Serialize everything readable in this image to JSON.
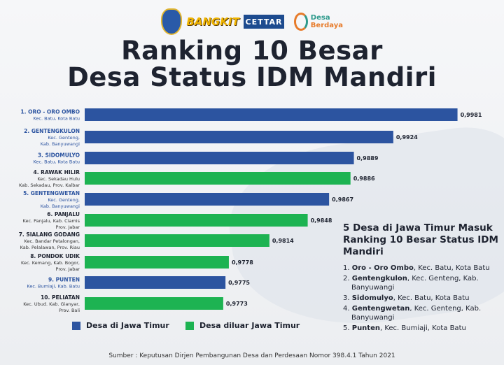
{
  "logos": [
    "Jawa Timur",
    "Jatim Bangkit",
    "CETTAR",
    "Desa Berdaya"
  ],
  "title_line1": "Ranking 10 Besar",
  "title_line2": "Desa Status IDM Mandiri",
  "chart_data": {
    "type": "bar",
    "orientation": "horizontal",
    "categories": [
      {
        "name": "1. ORO - ORO OMBO",
        "sub": [
          "Kec. Batu, Kota Batu"
        ],
        "group": "jatim"
      },
      {
        "name": "2. GENTENGKULON",
        "sub": [
          "Kec. Genteng,",
          "Kab. Banyuwangi"
        ],
        "group": "jatim"
      },
      {
        "name": "3. SIDOMULYO",
        "sub": [
          "Kec. Batu, Kota Batu"
        ],
        "group": "jatim"
      },
      {
        "name": "4. RAWAK HILIR",
        "sub": [
          "Kec. Sekadau Hulu",
          "Kab. Sekadau, Prov. Kalbar"
        ],
        "group": "luar"
      },
      {
        "name": "5. GENTENGWETAN",
        "sub": [
          "Kec. Genteng,",
          "Kab. Banyuwangi"
        ],
        "group": "jatim"
      },
      {
        "name": "6. PANJALU",
        "sub": [
          "Kec. Panjalu, Kab. Ciamis",
          "Prov. Jabar"
        ],
        "group": "luar"
      },
      {
        "name": "7. SIALANG GODANG",
        "sub": [
          "Kec. Bandar Petalongan,",
          "Kab. Pelalawan, Prov. Riau"
        ],
        "group": "luar"
      },
      {
        "name": "8. PONDOK UDIK",
        "sub": [
          "Kec. Kemang, Kab. Bogor,",
          "Prov. Jabar"
        ],
        "group": "luar"
      },
      {
        "name": "9. PUNTEN",
        "sub": [
          "Kec. Bumiaji, Kab. Batu"
        ],
        "group": "jatim"
      },
      {
        "name": "10. PELIATAN",
        "sub": [
          "Kec. Ubud. Kab. Gianyar,",
          "Prov. Bali"
        ],
        "group": "luar"
      }
    ],
    "values": [
      0.9981,
      0.9924,
      0.9889,
      0.9886,
      0.9867,
      0.9848,
      0.9814,
      0.9778,
      0.9775,
      0.9773
    ],
    "value_labels": [
      "0,9981",
      "0,9924",
      "0,9889",
      "0,9886",
      "0,9867",
      "0,9848",
      "0,9814",
      "0,9778",
      "0,9775",
      "0,9773"
    ],
    "xlim": [
      0.965,
      0.9985
    ],
    "grid": false,
    "legend": {
      "placement": "bottom-left",
      "items": [
        {
          "key": "jatim",
          "label": "Desa di Jawa Timur",
          "color": "#2c54a0"
        },
        {
          "key": "luar",
          "label": "Desa diluar Jawa Timur",
          "color": "#1db352"
        }
      ]
    },
    "colors": {
      "jatim": "#2c54a0",
      "luar": "#1db352",
      "jatim_label": "#2c54a0",
      "luar_label": "#1e2330"
    }
  },
  "sidebar": {
    "heading": "5 Desa di Jawa Timur Masuk Ranking 10 Besar Status IDM Mandiri",
    "items": [
      {
        "num": "1.",
        "bold": "Oro - Oro Ombo",
        "rest": ", Kec. Batu, Kota Batu"
      },
      {
        "num": "2.",
        "bold": "Gentengkulon",
        "rest": ", Kec. Genteng, Kab. Banyuwangi"
      },
      {
        "num": "3.",
        "bold": "Sidomulyo",
        "rest": ", Kec. Batu, Kota Batu"
      },
      {
        "num": "4.",
        "bold": "Gentengwetan",
        "rest": ", Kec. Genteng, Kab. Banyuwangi"
      },
      {
        "num": "5.",
        "bold": "Punten",
        "rest": ", Kec. Bumiaji, Kota Batu"
      }
    ]
  },
  "source": "Sumber : Keputusan Dirjen Pembangunan Desa dan Perdesaan Nomor 398.4.1 Tahun 2021"
}
